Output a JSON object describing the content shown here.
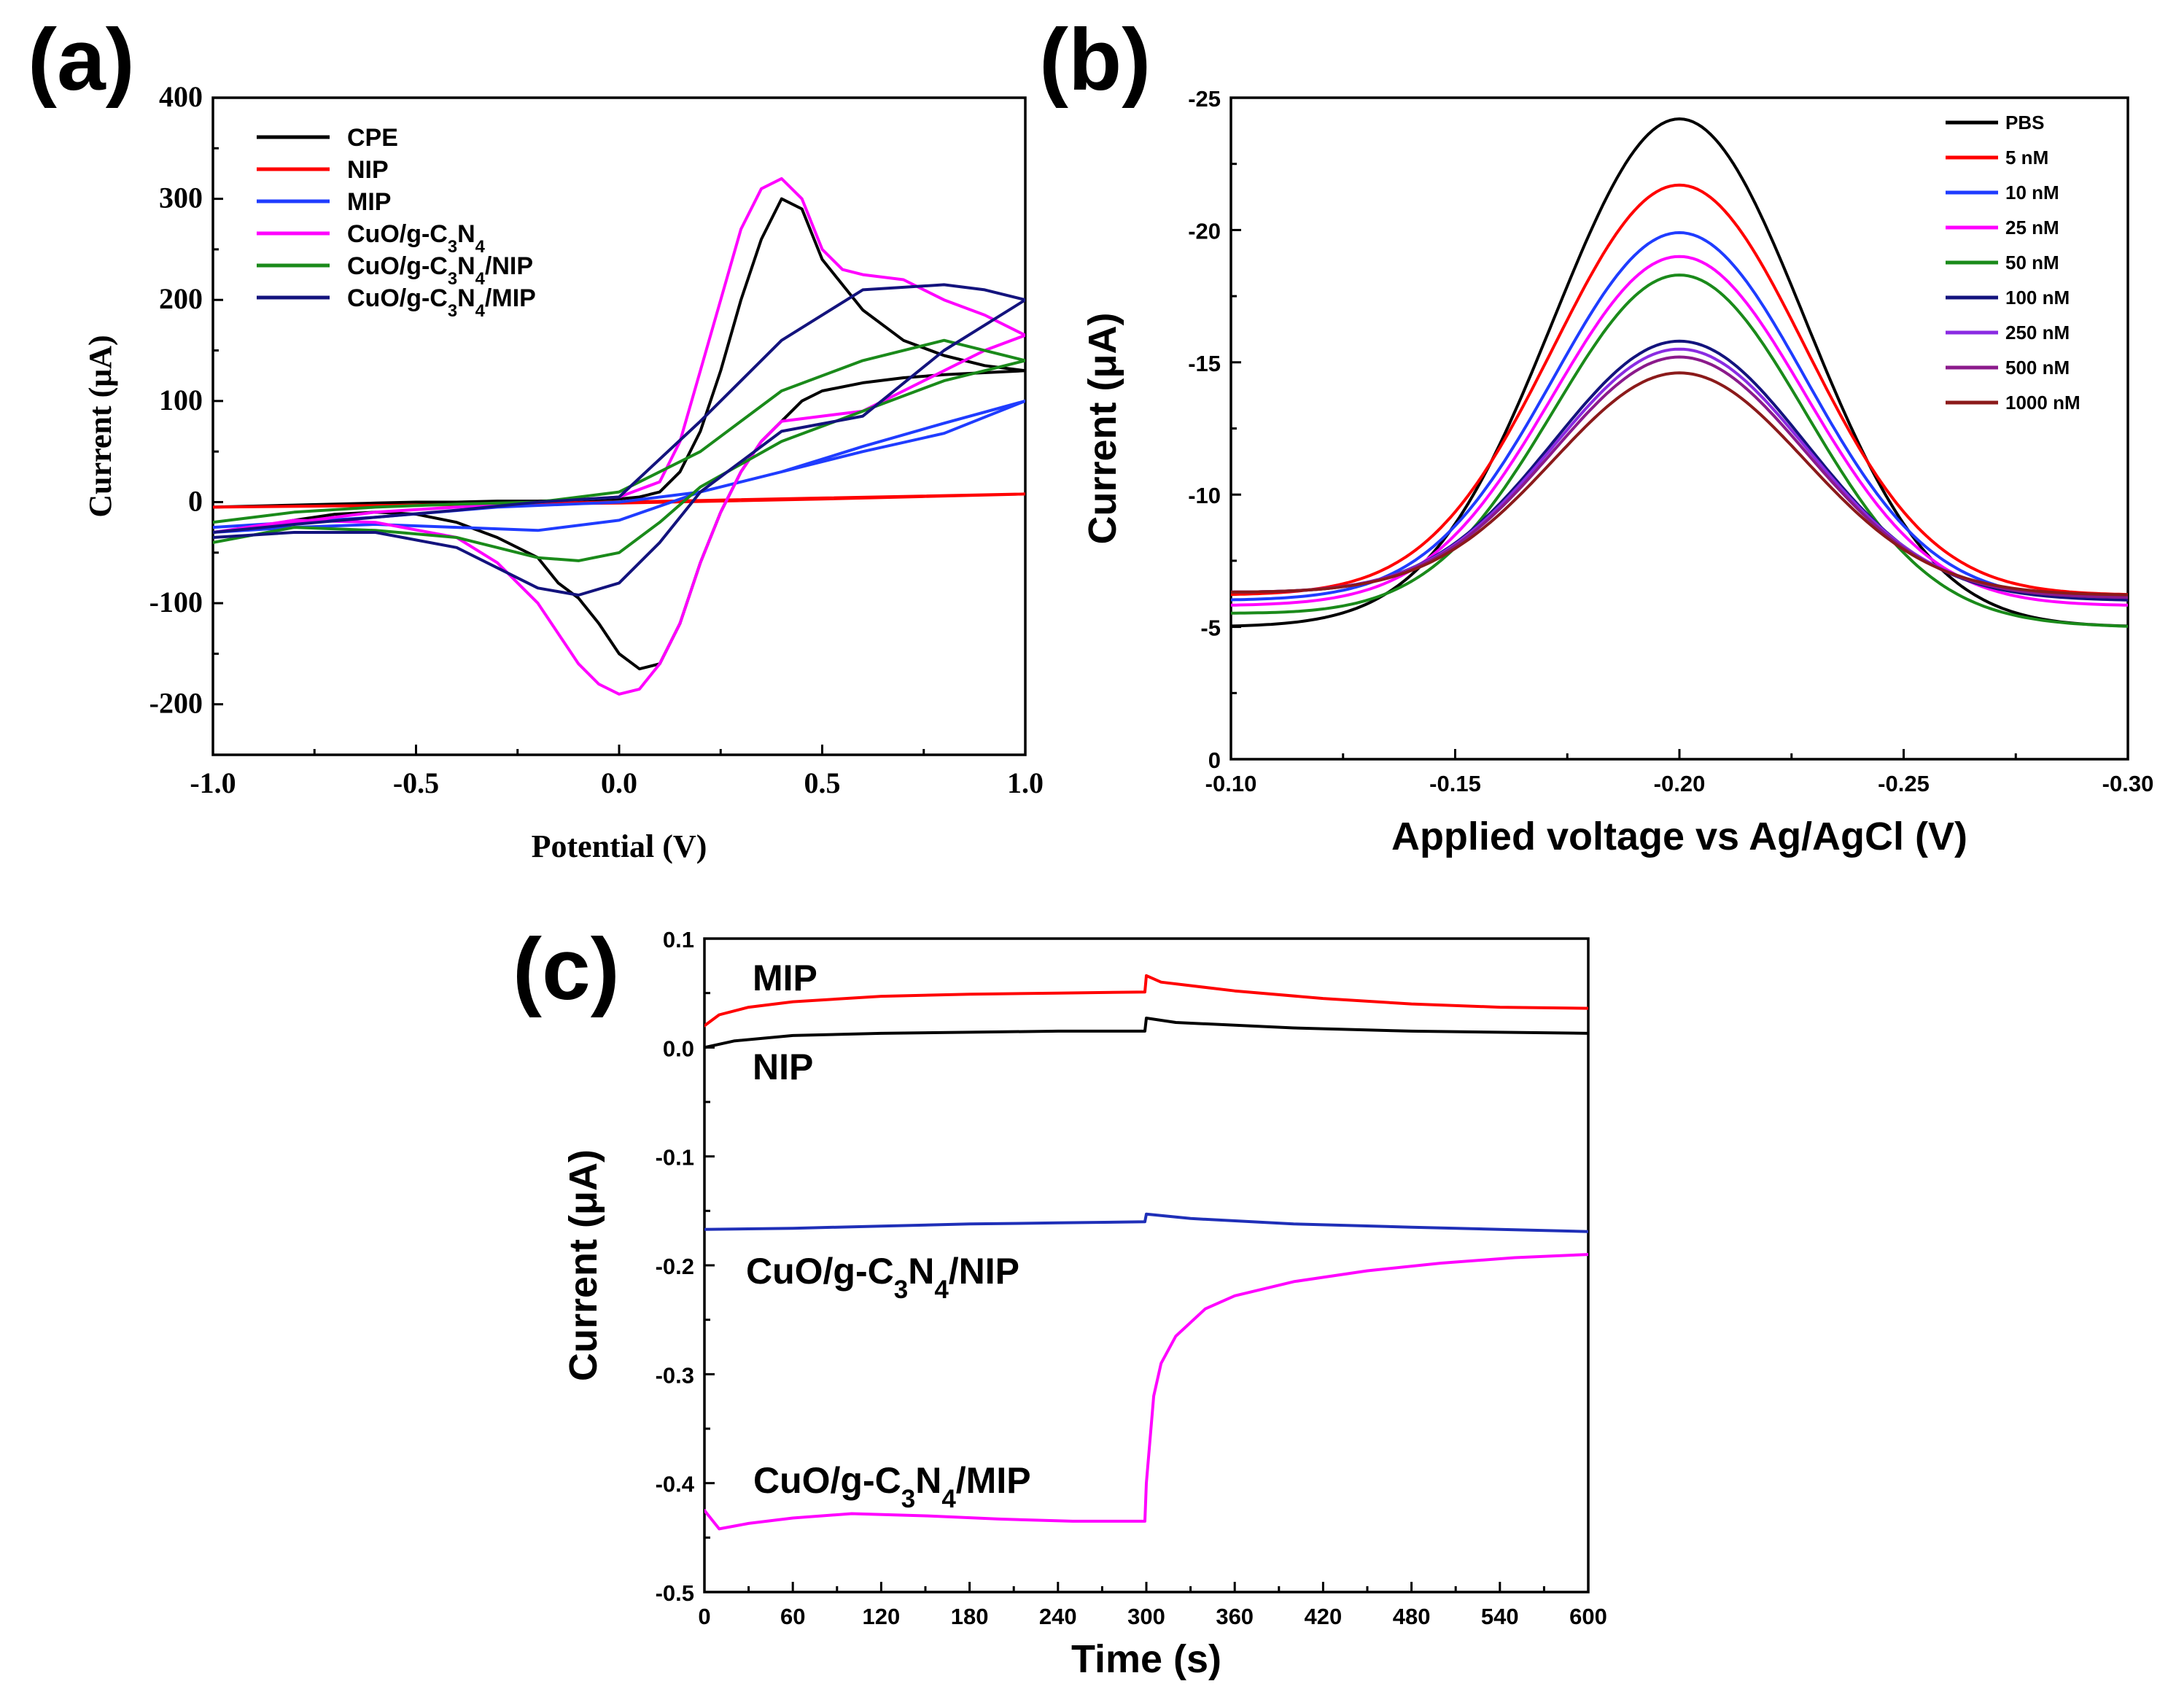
{
  "panels": {
    "a": {
      "label": "(a)"
    },
    "b": {
      "label": "(b)"
    },
    "c": {
      "label": "(c)"
    }
  },
  "chart_data": [
    {
      "id": "a",
      "type": "line",
      "xlabel": "Potential (V)",
      "ylabel": "Current (μA)",
      "xlim": [
        -1.0,
        1.0
      ],
      "ylim": [
        -250,
        400
      ],
      "xticks": [
        -1.0,
        -0.5,
        0.0,
        0.5,
        1.0
      ],
      "xtick_labels": [
        "-1.0",
        "-0.5",
        "0.0",
        "0.5",
        "1.0"
      ],
      "yticks": [
        -200,
        -100,
        0,
        100,
        200,
        300,
        400
      ],
      "ytick_labels": [
        "-200",
        "-100",
        "0",
        "100",
        "200",
        "300",
        "400"
      ],
      "legend_position": "top-left",
      "series": [
        {
          "name": "CPE",
          "name_parts": [
            [
              "CPE",
              ""
            ]
          ],
          "color": "#000000",
          "x": [
            -1.0,
            -0.9,
            -0.8,
            -0.7,
            -0.6,
            -0.5,
            -0.4,
            -0.3,
            -0.2,
            -0.1,
            0.0,
            0.05,
            0.1,
            0.15,
            0.2,
            0.25,
            0.3,
            0.35,
            0.4,
            0.45,
            0.5,
            0.6,
            0.7,
            0.8,
            0.9,
            1.0,
            0.9,
            0.8,
            0.7,
            0.6,
            0.5,
            0.45,
            0.4,
            0.35,
            0.3,
            0.25,
            0.2,
            0.15,
            0.1,
            0.05,
            0.0,
            -0.05,
            -0.1,
            -0.15,
            -0.2,
            -0.3,
            -0.4,
            -0.5,
            -0.6,
            -0.7,
            -0.8,
            -0.9,
            -1.0
          ],
          "y": [
            -5,
            -4,
            -3,
            -2,
            -1,
            0,
            0,
            1,
            1,
            2,
            3,
            5,
            10,
            30,
            70,
            130,
            200,
            260,
            300,
            290,
            240,
            190,
            160,
            145,
            135,
            130,
            128,
            126,
            123,
            118,
            110,
            100,
            80,
            60,
            30,
            -10,
            -60,
            -120,
            -160,
            -165,
            -150,
            -120,
            -95,
            -80,
            -55,
            -35,
            -20,
            -12,
            -10,
            -12,
            -18,
            -25,
            -30
          ]
        },
        {
          "name": "NIP",
          "name_parts": [
            [
              "NIP",
              ""
            ]
          ],
          "color": "#ff0000",
          "x": [
            -1.0,
            -0.5,
            0.0,
            0.5,
            1.0,
            0.5,
            0.0,
            -0.5,
            -1.0
          ],
          "y": [
            -5,
            -3,
            -1,
            3,
            8,
            4,
            0,
            -3,
            -5
          ]
        },
        {
          "name": "MIP",
          "name_parts": [
            [
              "MIP",
              ""
            ]
          ],
          "color": "#1f3cff",
          "x": [
            -1.0,
            -0.6,
            -0.3,
            0.0,
            0.2,
            0.4,
            0.6,
            0.8,
            1.0,
            0.8,
            0.6,
            0.4,
            0.2,
            0.0,
            -0.2,
            -0.4,
            -0.6,
            -0.8,
            -1.0
          ],
          "y": [
            -25,
            -15,
            -5,
            0,
            10,
            30,
            55,
            78,
            100,
            68,
            50,
            30,
            10,
            -18,
            -28,
            -25,
            -22,
            -25,
            -30
          ]
        },
        {
          "name": "CuO/g-C3N4",
          "name_parts": [
            [
              "CuO/g-C",
              ""
            ],
            [
              "3",
              "sub"
            ],
            [
              "N",
              ""
            ],
            [
              "4",
              "sub"
            ]
          ],
          "color": "#ff00ff",
          "x": [
            -1.0,
            -0.8,
            -0.6,
            -0.4,
            -0.2,
            0.0,
            0.1,
            0.15,
            0.2,
            0.25,
            0.3,
            0.35,
            0.4,
            0.45,
            0.5,
            0.55,
            0.6,
            0.7,
            0.8,
            0.9,
            1.0,
            0.9,
            0.8,
            0.7,
            0.6,
            0.5,
            0.4,
            0.35,
            0.3,
            0.25,
            0.2,
            0.15,
            0.1,
            0.05,
            0.0,
            -0.05,
            -0.1,
            -0.15,
            -0.2,
            -0.3,
            -0.4,
            -0.6,
            -0.8,
            -1.0
          ],
          "y": [
            -30,
            -20,
            -10,
            -5,
            0,
            5,
            20,
            60,
            130,
            200,
            270,
            310,
            320,
            300,
            250,
            230,
            225,
            220,
            200,
            185,
            165,
            150,
            130,
            110,
            90,
            85,
            80,
            60,
            30,
            -10,
            -60,
            -120,
            -160,
            -185,
            -190,
            -180,
            -160,
            -130,
            -100,
            -60,
            -35,
            -20,
            -18,
            -30
          ]
        },
        {
          "name": "CuO/g-C3N4/NIP",
          "name_parts": [
            [
              "CuO/g-C",
              ""
            ],
            [
              "3",
              "sub"
            ],
            [
              "N",
              ""
            ],
            [
              "4",
              "sub"
            ],
            [
              "/NIP",
              ""
            ]
          ],
          "color": "#1a8a1a",
          "x": [
            -1.0,
            -0.8,
            -0.6,
            -0.4,
            -0.2,
            0.0,
            0.2,
            0.4,
            0.6,
            0.8,
            1.0,
            0.8,
            0.6,
            0.4,
            0.2,
            0.1,
            0.0,
            -0.1,
            -0.2,
            -0.3,
            -0.4,
            -0.6,
            -0.8,
            -1.0
          ],
          "y": [
            -20,
            -10,
            -5,
            -2,
            0,
            10,
            50,
            110,
            140,
            160,
            140,
            120,
            90,
            60,
            15,
            -20,
            -50,
            -58,
            -55,
            -45,
            -35,
            -28,
            -25,
            -40
          ]
        },
        {
          "name": "CuO/g-C3N4/MIP",
          "name_parts": [
            [
              "CuO/g-C",
              ""
            ],
            [
              "3",
              "sub"
            ],
            [
              "N",
              ""
            ],
            [
              "4",
              "sub"
            ],
            [
              "/MIP",
              ""
            ]
          ],
          "color": "#13137d",
          "x": [
            -1.0,
            -0.8,
            -0.6,
            -0.4,
            -0.2,
            0.0,
            0.2,
            0.4,
            0.6,
            0.8,
            0.9,
            1.0,
            0.8,
            0.6,
            0.4,
            0.2,
            0.1,
            0.0,
            -0.1,
            -0.2,
            -0.3,
            -0.4,
            -0.6,
            -0.8,
            -1.0
          ],
          "y": [
            -30,
            -22,
            -15,
            -8,
            0,
            5,
            80,
            160,
            210,
            215,
            210,
            200,
            150,
            85,
            70,
            10,
            -40,
            -80,
            -92,
            -85,
            -65,
            -45,
            -30,
            -30,
            -35
          ]
        }
      ]
    },
    {
      "id": "b",
      "type": "line",
      "xlabel": "Applied voltage vs Ag/AgCl (V)",
      "ylabel": "Current (μA)",
      "xlim": [
        -0.1,
        -0.3
      ],
      "ylim": [
        0,
        -25
      ],
      "xticks": [
        -0.1,
        -0.15,
        -0.2,
        -0.25,
        -0.3
      ],
      "xtick_labels": [
        "-0.10",
        "-0.15",
        "-0.20",
        "-0.25",
        "-0.30"
      ],
      "yticks": [
        0,
        -5,
        -10,
        -15,
        -20,
        -25
      ],
      "ytick_labels": [
        "0",
        "-5",
        "-10",
        "-15",
        "-20",
        "-25"
      ],
      "legend_position": "top-right",
      "series": [
        {
          "name": "PBS",
          "name_parts": [
            [
              "PBS",
              ""
            ]
          ],
          "color": "#000000",
          "peak": -24.2,
          "base_start": -5.0,
          "base_end": -5.0
        },
        {
          "name": "5 nM",
          "name_parts": [
            [
              "5 nM",
              ""
            ]
          ],
          "color": "#ff0000",
          "peak": -21.7,
          "base_start": -6.2,
          "base_end": -6.2
        },
        {
          "name": "10 nM",
          "name_parts": [
            [
              "10 nM",
              ""
            ]
          ],
          "color": "#1f3cff",
          "peak": -19.9,
          "base_start": -6.0,
          "base_end": -6.0
        },
        {
          "name": "25 nM",
          "name_parts": [
            [
              "25 nM",
              ""
            ]
          ],
          "color": "#ff00ff",
          "peak": -19.0,
          "base_start": -5.8,
          "base_end": -5.8
        },
        {
          "name": "50 nM",
          "name_parts": [
            [
              "50 nM",
              ""
            ]
          ],
          "color": "#1a8a1a",
          "peak": -18.3,
          "base_start": -5.5,
          "base_end": -5.0
        },
        {
          "name": "100 nM",
          "name_parts": [
            [
              "100 nM",
              ""
            ]
          ],
          "color": "#13137d",
          "peak": -15.8,
          "base_start": -6.3,
          "base_end": -6.0
        },
        {
          "name": "250 nM",
          "name_parts": [
            [
              "250 nM",
              ""
            ]
          ],
          "color": "#8a2be2",
          "peak": -15.5,
          "base_start": -6.3,
          "base_end": -6.1
        },
        {
          "name": "500 nM",
          "name_parts": [
            [
              "500 nM",
              ""
            ]
          ],
          "color": "#8b1a8b",
          "peak": -15.2,
          "base_start": -6.3,
          "base_end": -6.1
        },
        {
          "name": "1000 nM",
          "name_parts": [
            [
              "1000 nM",
              ""
            ]
          ],
          "color": "#8b1a1a",
          "peak": -14.6,
          "base_start": -6.3,
          "base_end": -6.2
        }
      ]
    },
    {
      "id": "c",
      "type": "line",
      "xlabel": "Time (s)",
      "ylabel": "Current (μA)",
      "xlim": [
        0,
        600
      ],
      "ylim": [
        -0.5,
        0.1
      ],
      "xticks": [
        0,
        60,
        120,
        180,
        240,
        300,
        360,
        420,
        480,
        540,
        600
      ],
      "xtick_labels": [
        "0",
        "60",
        "120",
        "180",
        "240",
        "300",
        "360",
        "420",
        "480",
        "540",
        "600"
      ],
      "yticks": [
        -0.5,
        -0.4,
        -0.3,
        -0.2,
        -0.1,
        0.0,
        0.1
      ],
      "ytick_labels": [
        "-0.5",
        "-0.4",
        "-0.3",
        "-0.2",
        "-0.1",
        "0.0",
        "0.1"
      ],
      "series": [
        {
          "name": "MIP",
          "name_parts": [
            [
              "MIP",
              ""
            ]
          ],
          "color": "#ff0000",
          "x": [
            0,
            10,
            30,
            60,
            120,
            180,
            240,
            299,
            300,
            310,
            360,
            420,
            480,
            540,
            600
          ],
          "y": [
            0.02,
            0.03,
            0.037,
            0.042,
            0.047,
            0.049,
            0.05,
            0.051,
            0.066,
            0.06,
            0.052,
            0.045,
            0.04,
            0.037,
            0.036
          ]
        },
        {
          "name": "NIP",
          "name_parts": [
            [
              "NIP",
              ""
            ]
          ],
          "color": "#000000",
          "x": [
            0,
            20,
            60,
            120,
            180,
            240,
            299,
            300,
            320,
            400,
            480,
            600
          ],
          "y": [
            0.0,
            0.006,
            0.011,
            0.013,
            0.014,
            0.015,
            0.015,
            0.027,
            0.023,
            0.018,
            0.015,
            0.013
          ]
        },
        {
          "name": "CuO/g-C3N4/NIP",
          "name_parts": [
            [
              "CuO/g-C",
              ""
            ],
            [
              "3",
              "sub"
            ],
            [
              "N",
              ""
            ],
            [
              "4",
              "sub"
            ],
            [
              "/NIP",
              ""
            ]
          ],
          "color": "#1f2fb8",
          "x": [
            0,
            60,
            120,
            180,
            240,
            299,
            300,
            330,
            400,
            480,
            540,
            600
          ],
          "y": [
            -0.167,
            -0.166,
            -0.164,
            -0.162,
            -0.161,
            -0.16,
            -0.153,
            -0.157,
            -0.162,
            -0.165,
            -0.167,
            -0.169
          ]
        },
        {
          "name": "CuO/g-C3N4/MIP",
          "name_parts": [
            [
              "CuO/g-C",
              ""
            ],
            [
              "3",
              "sub"
            ],
            [
              "N",
              ""
            ],
            [
              "4",
              "sub"
            ],
            [
              "/MIP",
              ""
            ]
          ],
          "color": "#ff00ff",
          "x": [
            0,
            10,
            30,
            60,
            100,
            150,
            200,
            250,
            299,
            300,
            305,
            310,
            320,
            340,
            360,
            400,
            450,
            500,
            550,
            600
          ],
          "y": [
            -0.425,
            -0.442,
            -0.437,
            -0.432,
            -0.428,
            -0.43,
            -0.433,
            -0.435,
            -0.435,
            -0.4,
            -0.32,
            -0.29,
            -0.265,
            -0.24,
            -0.228,
            -0.215,
            -0.205,
            -0.198,
            -0.193,
            -0.19
          ]
        }
      ]
    }
  ]
}
